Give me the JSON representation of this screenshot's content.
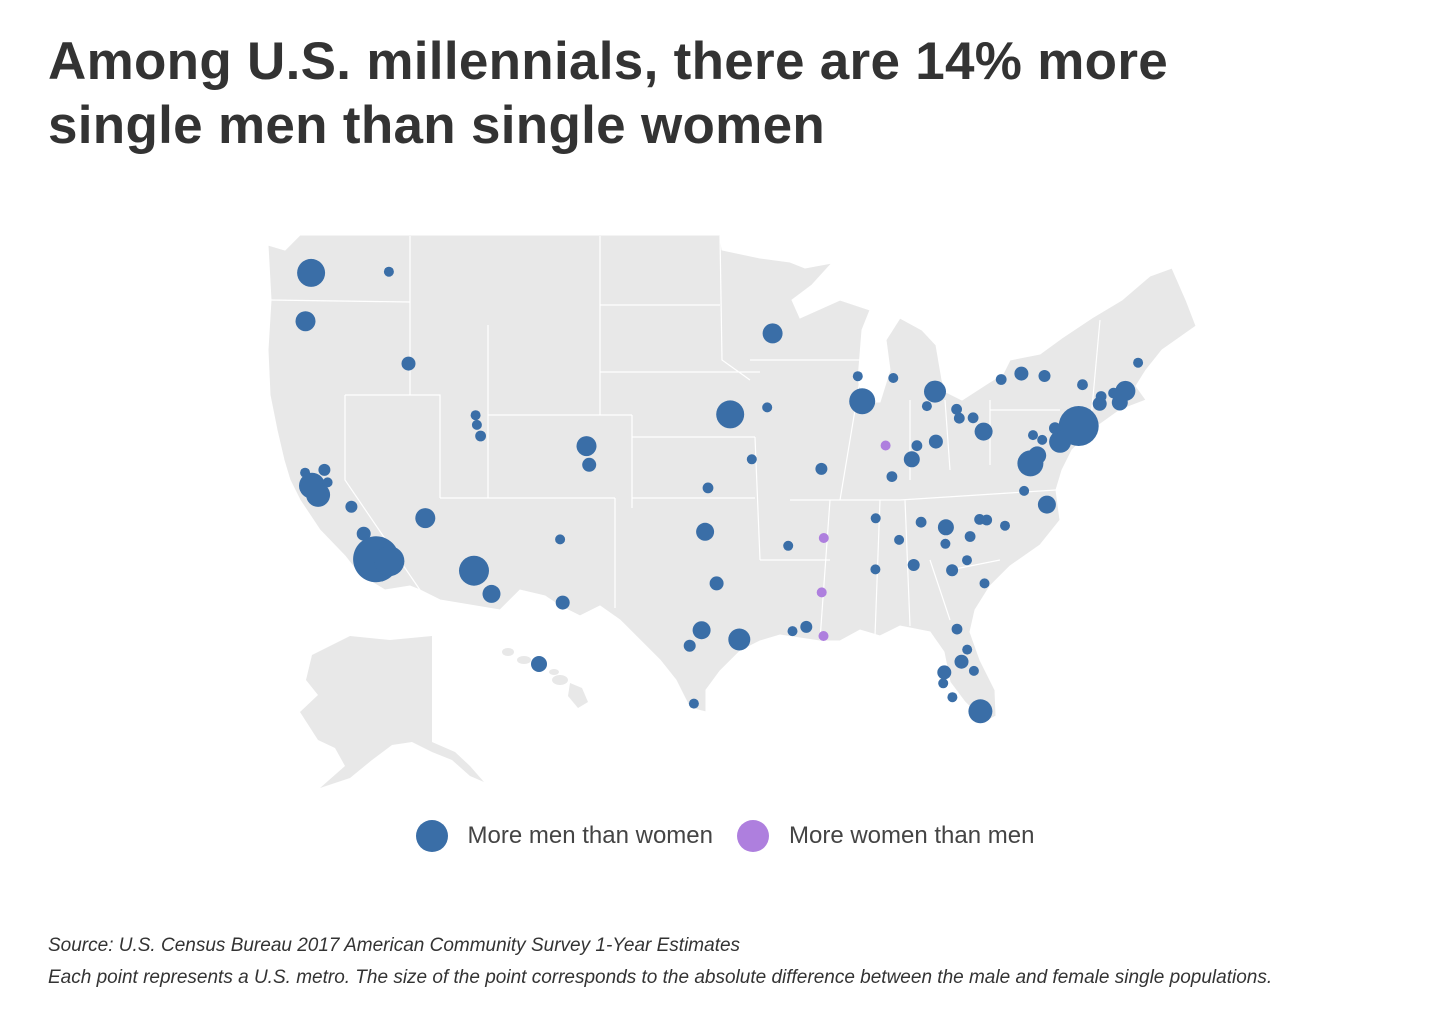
{
  "title": {
    "line1": "Among U.S. millennials, there are 14% more",
    "line2": "single men than single women"
  },
  "legend": {
    "items": [
      {
        "label": "More men than women",
        "color": "#3a6ea7"
      },
      {
        "label": "More women than men",
        "color": "#ae7fde"
      }
    ]
  },
  "footer": {
    "source": "Source: U.S. Census Bureau 2017 American Community Survey 1-Year Estimates",
    "note": "Each point represents a U.S. metro. The size of the point corresponds to the absolute difference between the male and female single populations."
  },
  "colors": {
    "land": "#e8e8e8",
    "borders": "#ffffff",
    "men": "#3a6ea7",
    "women": "#ae7fde",
    "text": "#333333"
  },
  "chart_data": {
    "type": "scatter",
    "subtype": "bubble-map",
    "projection": "mercator",
    "size_scale": "relative 1-10 (absolute difference between male and female single populations)",
    "points": [
      {
        "lon": -122.33,
        "lat": 47.61,
        "size": 5.5,
        "group": "men"
      },
      {
        "lon": -117.43,
        "lat": 47.66,
        "size": 1,
        "group": "men"
      },
      {
        "lon": -122.68,
        "lat": 45.52,
        "size": 3.5,
        "group": "men"
      },
      {
        "lon": -116.2,
        "lat": 43.62,
        "size": 2,
        "group": "men"
      },
      {
        "lon": -111.97,
        "lat": 41.22,
        "size": 1,
        "group": "men"
      },
      {
        "lon": -111.89,
        "lat": 40.76,
        "size": 1,
        "group": "men"
      },
      {
        "lon": -111.66,
        "lat": 40.23,
        "size": 1.2,
        "group": "men"
      },
      {
        "lon": -104.99,
        "lat": 39.74,
        "size": 3.5,
        "group": "men"
      },
      {
        "lon": -104.82,
        "lat": 38.83,
        "size": 2,
        "group": "men"
      },
      {
        "lon": -122.71,
        "lat": 38.44,
        "size": 1,
        "group": "men"
      },
      {
        "lon": -122.27,
        "lat": 37.8,
        "size": 5,
        "group": "men"
      },
      {
        "lon": -121.89,
        "lat": 37.34,
        "size": 4.5,
        "group": "men"
      },
      {
        "lon": -121.49,
        "lat": 38.58,
        "size": 1.5,
        "group": "men"
      },
      {
        "lon": -121.29,
        "lat": 37.96,
        "size": 1,
        "group": "men"
      },
      {
        "lon": -119.79,
        "lat": 36.74,
        "size": 1.5,
        "group": "men"
      },
      {
        "lon": -119.02,
        "lat": 35.37,
        "size": 2,
        "group": "men"
      },
      {
        "lon": -118.24,
        "lat": 34.05,
        "size": 10,
        "group": "men"
      },
      {
        "lon": -117.4,
        "lat": 33.95,
        "size": 6,
        "group": "men"
      },
      {
        "lon": -115.14,
        "lat": 36.17,
        "size": 3.5,
        "group": "men"
      },
      {
        "lon": -112.07,
        "lat": 33.45,
        "size": 6,
        "group": "men"
      },
      {
        "lon": -110.97,
        "lat": 32.22,
        "size": 3,
        "group": "men"
      },
      {
        "lon": -106.65,
        "lat": 35.08,
        "size": 1,
        "group": "men"
      },
      {
        "lon": -106.49,
        "lat": 31.76,
        "size": 2,
        "group": "men"
      },
      {
        "lon": -157.86,
        "lat": 21.31,
        "size": 2.5,
        "group": "men",
        "inset": "hawaii"
      },
      {
        "lon": -93.27,
        "lat": 44.98,
        "size": 3.5,
        "group": "men"
      },
      {
        "lon": -95.94,
        "lat": 41.26,
        "size": 5.5,
        "group": "men"
      },
      {
        "lon": -93.61,
        "lat": 41.59,
        "size": 1,
        "group": "men"
      },
      {
        "lon": -97.34,
        "lat": 37.69,
        "size": 1.2,
        "group": "men"
      },
      {
        "lon": -97.52,
        "lat": 35.47,
        "size": 3,
        "group": "men"
      },
      {
        "lon": -96.8,
        "lat": 32.78,
        "size": 2,
        "group": "men"
      },
      {
        "lon": -97.74,
        "lat": 30.27,
        "size": 3,
        "group": "men"
      },
      {
        "lon": -98.49,
        "lat": 29.42,
        "size": 1.5,
        "group": "men"
      },
      {
        "lon": -95.37,
        "lat": 29.76,
        "size": 4,
        "group": "men"
      },
      {
        "lon": -98.23,
        "lat": 26.2,
        "size": 1,
        "group": "men"
      },
      {
        "lon": -94.58,
        "lat": 39.1,
        "size": 1,
        "group": "men"
      },
      {
        "lon": -90.2,
        "lat": 38.63,
        "size": 1.5,
        "group": "men"
      },
      {
        "lon": -92.29,
        "lat": 34.75,
        "size": 1,
        "group": "men"
      },
      {
        "lon": -92.02,
        "lat": 30.22,
        "size": 1,
        "group": "men"
      },
      {
        "lon": -91.15,
        "lat": 30.45,
        "size": 1.5,
        "group": "men"
      },
      {
        "lon": -90.07,
        "lat": 29.95,
        "size": 1,
        "group": "women"
      },
      {
        "lon": -90.18,
        "lat": 32.3,
        "size": 1,
        "group": "women"
      },
      {
        "lon": -90.05,
        "lat": 35.15,
        "size": 1,
        "group": "women"
      },
      {
        "lon": -86.16,
        "lat": 39.77,
        "size": 1,
        "group": "women"
      },
      {
        "lon": -87.91,
        "lat": 43.04,
        "size": 1,
        "group": "men"
      },
      {
        "lon": -87.63,
        "lat": 41.88,
        "size": 5,
        "group": "men"
      },
      {
        "lon": -85.67,
        "lat": 42.96,
        "size": 1,
        "group": "men"
      },
      {
        "lon": -83.05,
        "lat": 42.33,
        "size": 4,
        "group": "men"
      },
      {
        "lon": -83.56,
        "lat": 41.65,
        "size": 1,
        "group": "men"
      },
      {
        "lon": -81.69,
        "lat": 41.5,
        "size": 1.2,
        "group": "men"
      },
      {
        "lon": -81.52,
        "lat": 41.08,
        "size": 1.2,
        "group": "men"
      },
      {
        "lon": -80.65,
        "lat": 41.1,
        "size": 1.2,
        "group": "men"
      },
      {
        "lon": -79.99,
        "lat": 40.44,
        "size": 3,
        "group": "men"
      },
      {
        "lon": -82.99,
        "lat": 39.96,
        "size": 2,
        "group": "men"
      },
      {
        "lon": -84.19,
        "lat": 39.76,
        "size": 1.2,
        "group": "men"
      },
      {
        "lon": -84.51,
        "lat": 39.1,
        "size": 2.5,
        "group": "men"
      },
      {
        "lon": -85.76,
        "lat": 38.25,
        "size": 1.2,
        "group": "men"
      },
      {
        "lon": -86.78,
        "lat": 36.16,
        "size": 1,
        "group": "men"
      },
      {
        "lon": -83.92,
        "lat": 35.96,
        "size": 1.2,
        "group": "men"
      },
      {
        "lon": -82.36,
        "lat": 35.7,
        "size": 2.5,
        "group": "men"
      },
      {
        "lon": -85.31,
        "lat": 35.05,
        "size": 1,
        "group": "men"
      },
      {
        "lon": -86.8,
        "lat": 33.52,
        "size": 1,
        "group": "men"
      },
      {
        "lon": -84.39,
        "lat": 33.75,
        "size": 1.5,
        "group": "men"
      },
      {
        "lon": -82.39,
        "lat": 34.85,
        "size": 1,
        "group": "men"
      },
      {
        "lon": -80.84,
        "lat": 35.23,
        "size": 1.2,
        "group": "men"
      },
      {
        "lon": -81.03,
        "lat": 34.0,
        "size": 1,
        "group": "men"
      },
      {
        "lon": -81.97,
        "lat": 33.47,
        "size": 1.5,
        "group": "men"
      },
      {
        "lon": -79.93,
        "lat": 32.78,
        "size": 1,
        "group": "men"
      },
      {
        "lon": -80.24,
        "lat": 36.1,
        "size": 1.2,
        "group": "men"
      },
      {
        "lon": -79.79,
        "lat": 36.07,
        "size": 1.2,
        "group": "men"
      },
      {
        "lon": -78.64,
        "lat": 35.78,
        "size": 1,
        "group": "men"
      },
      {
        "lon": -77.44,
        "lat": 37.54,
        "size": 1,
        "group": "men"
      },
      {
        "lon": -76.0,
        "lat": 36.85,
        "size": 3,
        "group": "men"
      },
      {
        "lon": -77.04,
        "lat": 38.9,
        "size": 5,
        "group": "men"
      },
      {
        "lon": -76.61,
        "lat": 39.29,
        "size": 3,
        "group": "men"
      },
      {
        "lon": -76.88,
        "lat": 40.27,
        "size": 1,
        "group": "men"
      },
      {
        "lon": -76.3,
        "lat": 40.04,
        "size": 1,
        "group": "men"
      },
      {
        "lon": -75.49,
        "lat": 40.6,
        "size": 1.5,
        "group": "men"
      },
      {
        "lon": -75.17,
        "lat": 39.95,
        "size": 4,
        "group": "men"
      },
      {
        "lon": -74.0,
        "lat": 40.71,
        "size": 8.5,
        "group": "men"
      },
      {
        "lon": -78.88,
        "lat": 42.89,
        "size": 1.2,
        "group": "men"
      },
      {
        "lon": -77.61,
        "lat": 43.16,
        "size": 2,
        "group": "men"
      },
      {
        "lon": -76.15,
        "lat": 43.05,
        "size": 1.5,
        "group": "men"
      },
      {
        "lon": -73.76,
        "lat": 42.65,
        "size": 1.2,
        "group": "men"
      },
      {
        "lon": -72.68,
        "lat": 41.76,
        "size": 2,
        "group": "men"
      },
      {
        "lon": -72.59,
        "lat": 42.1,
        "size": 1.2,
        "group": "men"
      },
      {
        "lon": -71.8,
        "lat": 42.26,
        "size": 1.2,
        "group": "men"
      },
      {
        "lon": -71.06,
        "lat": 42.36,
        "size": 3.5,
        "group": "men"
      },
      {
        "lon": -71.41,
        "lat": 41.82,
        "size": 2.5,
        "group": "men"
      },
      {
        "lon": -70.26,
        "lat": 43.66,
        "size": 1,
        "group": "men"
      },
      {
        "lon": -81.66,
        "lat": 30.33,
        "size": 1.2,
        "group": "men"
      },
      {
        "lon": -81.02,
        "lat": 29.21,
        "size": 1,
        "group": "men"
      },
      {
        "lon": -81.38,
        "lat": 28.54,
        "size": 2,
        "group": "men"
      },
      {
        "lon": -80.6,
        "lat": 28.03,
        "size": 1,
        "group": "men"
      },
      {
        "lon": -82.46,
        "lat": 27.95,
        "size": 2,
        "group": "men"
      },
      {
        "lon": -82.53,
        "lat": 27.34,
        "size": 1,
        "group": "men"
      },
      {
        "lon": -81.95,
        "lat": 26.56,
        "size": 1,
        "group": "men"
      },
      {
        "lon": -80.19,
        "lat": 25.76,
        "size": 4.5,
        "group": "men"
      }
    ]
  }
}
